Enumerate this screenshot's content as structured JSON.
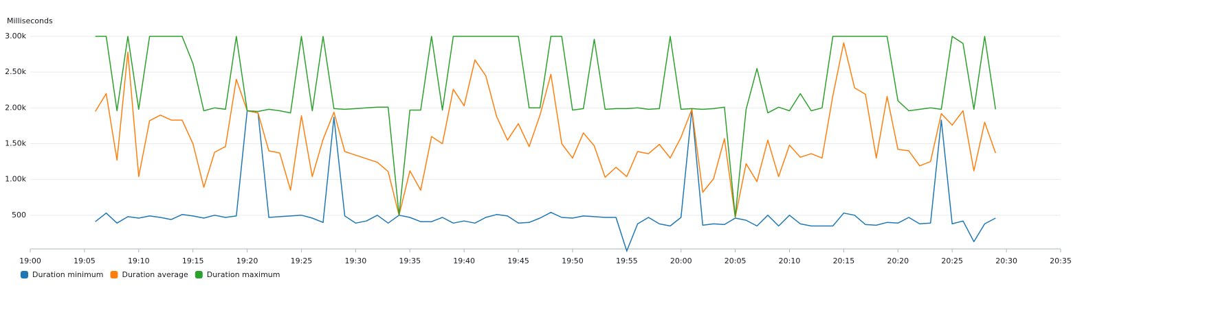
{
  "chart_data": {
    "type": "line",
    "y_label": "Milliseconds",
    "x": [
      "19:06",
      "19:07",
      "19:08",
      "19:09",
      "19:10",
      "19:11",
      "19:12",
      "19:13",
      "19:14",
      "19:15",
      "19:16",
      "19:17",
      "19:18",
      "19:19",
      "19:20",
      "19:21",
      "19:22",
      "19:23",
      "19:24",
      "19:25",
      "19:26",
      "19:27",
      "19:28",
      "19:29",
      "19:30",
      "19:31",
      "19:32",
      "19:33",
      "19:34",
      "19:35",
      "19:36",
      "19:37",
      "19:38",
      "19:39",
      "19:40",
      "19:41",
      "19:42",
      "19:43",
      "19:44",
      "19:45",
      "19:46",
      "19:47",
      "19:48",
      "19:49",
      "19:50",
      "19:51",
      "19:52",
      "19:53",
      "19:54",
      "19:55",
      "19:56",
      "19:57",
      "19:58",
      "19:59",
      "20:00",
      "20:01",
      "20:02",
      "20:03",
      "20:04",
      "20:05",
      "20:06",
      "20:07",
      "20:08",
      "20:09",
      "20:10",
      "20:11",
      "20:12",
      "20:13",
      "20:14",
      "20:15",
      "20:16",
      "20:17",
      "20:18",
      "20:19",
      "20:20",
      "20:21",
      "20:22",
      "20:23",
      "20:24",
      "20:25",
      "20:26",
      "20:27",
      "20:28",
      "20:29"
    ],
    "series": [
      {
        "name": "Duration minimum",
        "color": "#1f77b4",
        "values": [
          410,
          530,
          390,
          480,
          460,
          490,
          470,
          440,
          510,
          490,
          460,
          500,
          470,
          490,
          1960,
          1930,
          470,
          480,
          490,
          500,
          460,
          400,
          1870,
          490,
          390,
          420,
          500,
          390,
          500,
          470,
          410,
          410,
          470,
          390,
          420,
          390,
          470,
          510,
          490,
          390,
          400,
          460,
          540,
          470,
          460,
          490,
          480,
          470,
          470,
          0,
          380,
          470,
          380,
          350,
          470,
          1980,
          360,
          380,
          370,
          460,
          430,
          350,
          500,
          350,
          500,
          380,
          350,
          350,
          350,
          530,
          500,
          370,
          360,
          400,
          390,
          470,
          380,
          390,
          1830,
          380,
          420,
          130,
          380,
          460
        ]
      },
      {
        "name": "Duration average",
        "color": "#ff7f0e",
        "values": [
          1950,
          2200,
          1270,
          2780,
          1040,
          1820,
          1900,
          1830,
          1830,
          1500,
          890,
          1380,
          1460,
          2400,
          1960,
          1930,
          1400,
          1370,
          850,
          1890,
          1040,
          1560,
          1940,
          1390,
          1340,
          1290,
          1240,
          1110,
          500,
          1120,
          850,
          1600,
          1500,
          2260,
          2030,
          2670,
          2450,
          1880,
          1550,
          1780,
          1460,
          1900,
          2470,
          1500,
          1300,
          1650,
          1470,
          1030,
          1170,
          1040,
          1390,
          1360,
          1490,
          1300,
          1590,
          1980,
          820,
          1010,
          1570,
          470,
          1220,
          970,
          1550,
          1040,
          1480,
          1310,
          1360,
          1300,
          2170,
          2910,
          2280,
          2190,
          1300,
          2160,
          1420,
          1400,
          1190,
          1250,
          1920,
          1760,
          1960,
          1120,
          1800,
          1370
        ]
      },
      {
        "name": "Duration maximum",
        "color": "#2ca02c",
        "values": [
          3000,
          3000,
          1960,
          3000,
          1980,
          3000,
          3000,
          3000,
          3000,
          2620,
          1960,
          2000,
          1980,
          3000,
          1960,
          1950,
          1980,
          1960,
          1930,
          3000,
          1960,
          3000,
          1990,
          1980,
          1990,
          2000,
          2010,
          2010,
          500,
          1970,
          1970,
          3000,
          1970,
          3000,
          3000,
          3000,
          3000,
          3000,
          3000,
          3000,
          2000,
          2000,
          3000,
          3000,
          1970,
          1990,
          2960,
          1980,
          1990,
          1990,
          2000,
          1980,
          1990,
          3000,
          1980,
          1990,
          1980,
          1990,
          2010,
          480,
          1980,
          2550,
          1930,
          2010,
          1960,
          2200,
          1960,
          2000,
          3000,
          3000,
          3000,
          3000,
          3000,
          3000,
          2100,
          1960,
          1980,
          2000,
          1980,
          3000,
          2900,
          1980,
          3000,
          1980
        ]
      }
    ],
    "xlim": [
      "19:00",
      "20:35"
    ],
    "xticks": [
      "19:00",
      "19:05",
      "19:10",
      "19:15",
      "19:20",
      "19:25",
      "19:30",
      "19:35",
      "19:40",
      "19:45",
      "19:50",
      "19:55",
      "20:00",
      "20:05",
      "20:10",
      "20:15",
      "20:20",
      "20:25",
      "20:30",
      "20:35"
    ],
    "ylim": [
      0,
      3000
    ],
    "yticks": [
      {
        "value": 500,
        "label": "500"
      },
      {
        "value": 1000,
        "label": "1.00k"
      },
      {
        "value": 1500,
        "label": "1.50k"
      },
      {
        "value": 2000,
        "label": "2.00k"
      },
      {
        "value": 2500,
        "label": "2.50k"
      },
      {
        "value": 3000,
        "label": "3.00k"
      }
    ],
    "grid": true,
    "legend": "bottom-left"
  }
}
